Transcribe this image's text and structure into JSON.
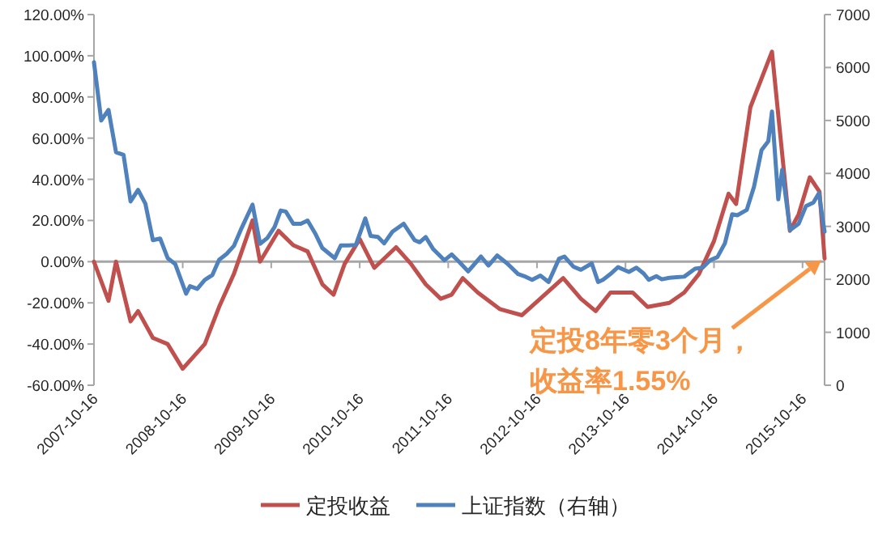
{
  "chart_data": {
    "type": "line",
    "legend": "bottom",
    "marker": "none",
    "line_style": "solid",
    "xlim": [
      "2007-10-16",
      "2016-01-15"
    ],
    "xticks": [
      "2007-10-16",
      "2008-10-16",
      "2009-10-16",
      "2010-10-16",
      "2011-10-16",
      "2012-10-16",
      "2013-10-16",
      "2014-10-16",
      "2015-10-16"
    ],
    "ylim": [
      -60,
      120
    ],
    "yticks": [
      {
        "value": -60,
        "label": "-60.00%"
      },
      {
        "value": -40,
        "label": "-40.00%"
      },
      {
        "value": -20,
        "label": "-20.00%"
      },
      {
        "value": 0,
        "label": "0.00%"
      },
      {
        "value": 20,
        "label": "20.00%"
      },
      {
        "value": 40,
        "label": "40.00%"
      },
      {
        "value": 60,
        "label": "60.00%"
      },
      {
        "value": 80,
        "label": "80.00%"
      },
      {
        "value": 100,
        "label": "100.00%"
      },
      {
        "value": 120,
        "label": "120.00%"
      }
    ],
    "y2lim": [
      0,
      7000
    ],
    "y2ticks": [
      0,
      1000,
      2000,
      3000,
      4000,
      5000,
      6000,
      7000
    ],
    "series": [
      {
        "name": "定投收益",
        "color": "#c0504d",
        "x": [
          "2007-10-16",
          "2007-12-15",
          "2008-01-15",
          "2008-03-15",
          "2008-04-15",
          "2008-06-15",
          "2008-08-15",
          "2008-10-16",
          "2009-01-15",
          "2009-03-15",
          "2009-05-15",
          "2009-07-31",
          "2009-08-31",
          "2009-11-15",
          "2010-01-15",
          "2010-03-15",
          "2010-05-15",
          "2010-06-30",
          "2010-08-15",
          "2010-10-16",
          "2010-12-15",
          "2011-03-15",
          "2011-05-15",
          "2011-07-15",
          "2011-09-15",
          "2011-10-30",
          "2011-12-15",
          "2012-02-15",
          "2012-05-15",
          "2012-08-15",
          "2013-02-01",
          "2013-04-15",
          "2013-06-15",
          "2013-08-15",
          "2013-11-15",
          "2014-01-15",
          "2014-04-15",
          "2014-06-15",
          "2014-08-15",
          "2014-10-16",
          "2014-12-15",
          "2015-01-15",
          "2015-03-15",
          "2015-06-12",
          "2015-07-15",
          "2015-08-25",
          "2015-09-30",
          "2015-11-15",
          "2015-12-25",
          "2016-01-15"
        ],
        "values": [
          0,
          -19,
          0,
          -29,
          -24,
          -37,
          -40,
          -52,
          -40,
          -22,
          -6,
          20,
          0,
          15,
          8,
          5,
          -11,
          -16,
          -1,
          11,
          -3,
          7,
          -1,
          -11,
          -18,
          -16,
          -8,
          -15,
          -23,
          -26,
          -8,
          -18,
          -24,
          -15,
          -15,
          -22,
          -20,
          -15,
          -6,
          10,
          33,
          28,
          75,
          102,
          63,
          15,
          23,
          41,
          34,
          1.55
        ]
      },
      {
        "name": "上证指数（右轴）",
        "color": "#4f81bd",
        "axis": "y2",
        "x": [
          "2007-10-16",
          "2007-11-15",
          "2007-12-15",
          "2008-01-15",
          "2008-02-15",
          "2008-03-15",
          "2008-04-15",
          "2008-05-15",
          "2008-06-15",
          "2008-07-15",
          "2008-08-15",
          "2008-09-15",
          "2008-10-30",
          "2008-11-15",
          "2008-12-15",
          "2009-01-15",
          "2009-02-15",
          "2009-03-15",
          "2009-04-15",
          "2009-05-15",
          "2009-06-15",
          "2009-07-31",
          "2009-08-31",
          "2009-09-30",
          "2009-10-30",
          "2009-11-24",
          "2009-12-15",
          "2010-01-15",
          "2010-02-15",
          "2010-03-15",
          "2010-04-15",
          "2010-05-15",
          "2010-07-05",
          "2010-07-30",
          "2010-08-30",
          "2010-09-30",
          "2010-11-08",
          "2010-11-30",
          "2010-12-30",
          "2011-01-25",
          "2011-02-28",
          "2011-04-15",
          "2011-05-30",
          "2011-06-20",
          "2011-07-15",
          "2011-08-15",
          "2011-09-30",
          "2011-10-30",
          "2011-11-30",
          "2012-01-06",
          "2012-02-28",
          "2012-03-30",
          "2012-05-05",
          "2012-06-15",
          "2012-07-30",
          "2012-08-30",
          "2012-09-26",
          "2012-10-30",
          "2012-12-03",
          "2013-01-15",
          "2013-02-06",
          "2013-03-15",
          "2013-04-15",
          "2013-05-30",
          "2013-06-25",
          "2013-07-15",
          "2013-08-15",
          "2013-09-15",
          "2013-10-30",
          "2013-11-30",
          "2013-12-30",
          "2014-01-20",
          "2014-02-20",
          "2014-03-15",
          "2014-04-15",
          "2014-05-15",
          "2014-06-15",
          "2014-07-30",
          "2014-08-30",
          "2014-09-30",
          "2014-10-30",
          "2014-11-30",
          "2014-12-30",
          "2015-01-20",
          "2015-02-28",
          "2015-03-30",
          "2015-04-30",
          "2015-05-28",
          "2015-06-12",
          "2015-07-08",
          "2015-07-24",
          "2015-08-26",
          "2015-09-30",
          "2015-10-30",
          "2015-11-30",
          "2015-12-23",
          "2016-01-07",
          "2016-01-15"
        ],
        "values": [
          6100,
          5000,
          5200,
          4400,
          4350,
          3470,
          3690,
          3430,
          2740,
          2770,
          2400,
          2290,
          1730,
          1870,
          1820,
          1990,
          2080,
          2370,
          2480,
          2630,
          2960,
          3410,
          2670,
          2780,
          2990,
          3300,
          3280,
          3050,
          3050,
          3110,
          2870,
          2590,
          2400,
          2640,
          2640,
          2650,
          3150,
          2820,
          2800,
          2680,
          2900,
          3050,
          2740,
          2700,
          2800,
          2570,
          2360,
          2470,
          2330,
          2150,
          2430,
          2260,
          2450,
          2300,
          2100,
          2050,
          1990,
          2070,
          1950,
          2390,
          2430,
          2240,
          2180,
          2300,
          1950,
          1990,
          2100,
          2230,
          2140,
          2220,
          2110,
          1990,
          2060,
          2000,
          2030,
          2040,
          2050,
          2200,
          2220,
          2360,
          2420,
          2680,
          3230,
          3210,
          3310,
          3750,
          4440,
          4610,
          5170,
          3510,
          4070,
          2930,
          3050,
          3380,
          3450,
          3630,
          3130,
          2900
        ]
      }
    ],
    "annotations": [
      "定投8年零3个月，收益率1.55%"
    ]
  }
}
